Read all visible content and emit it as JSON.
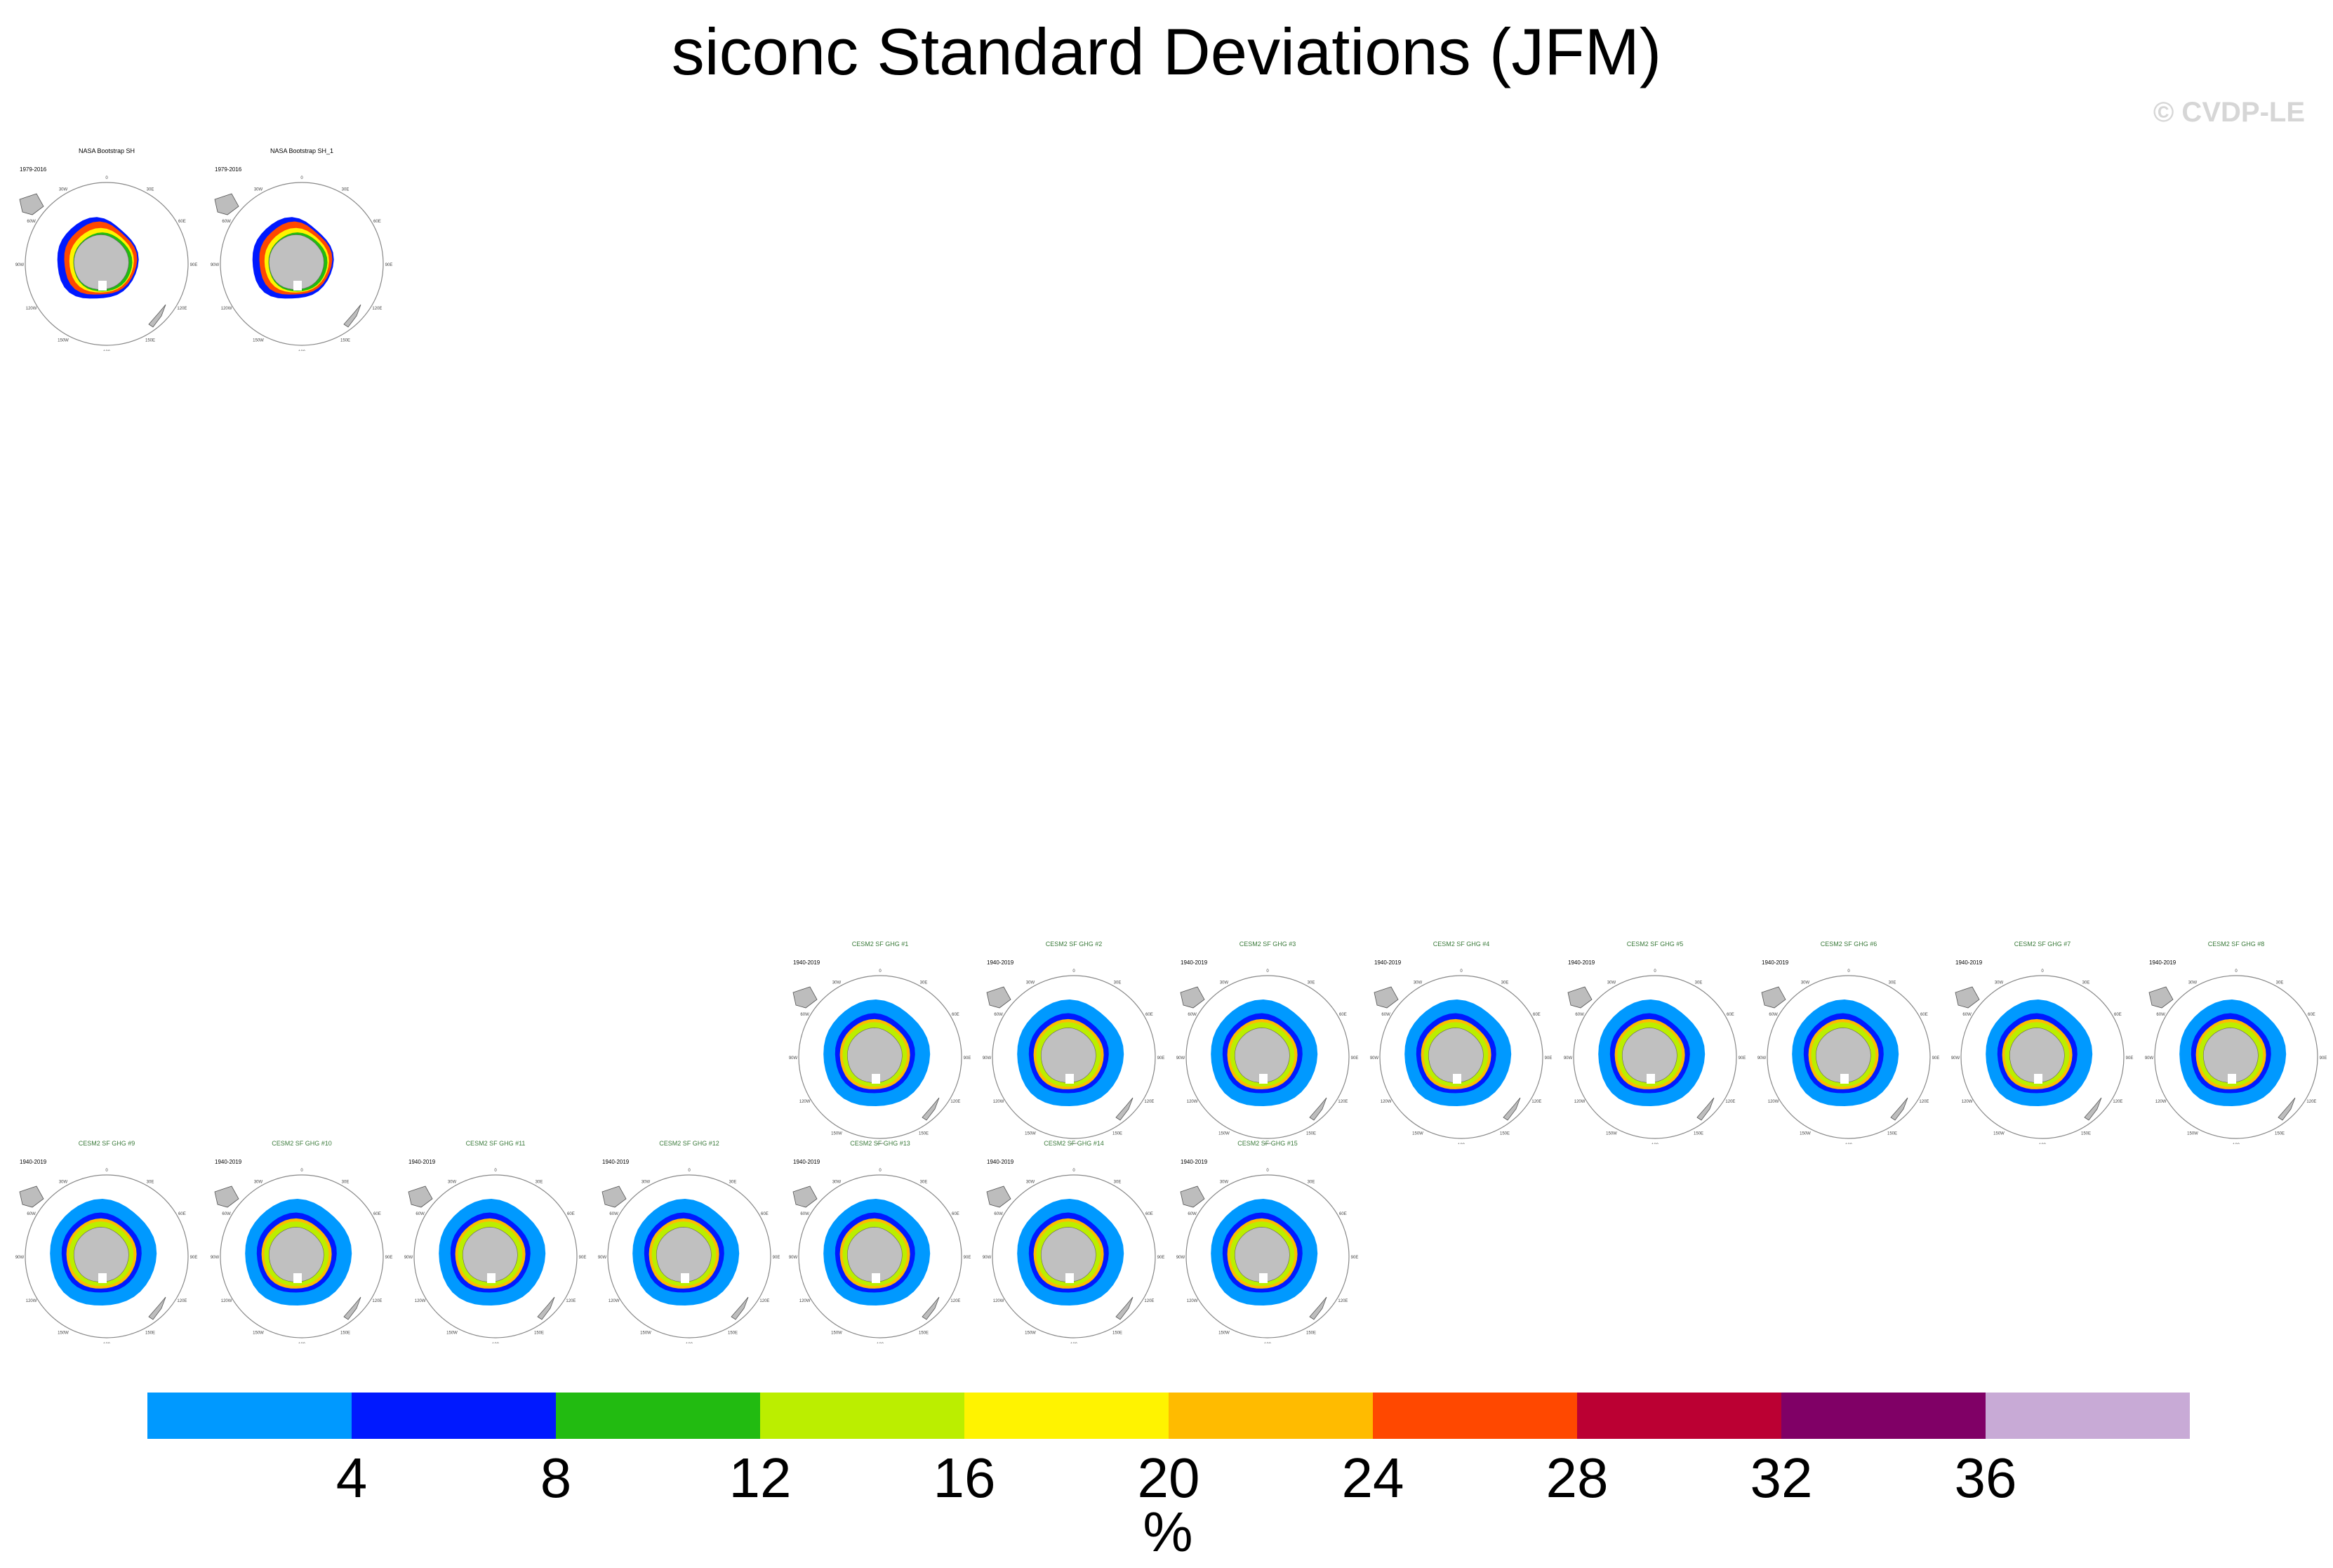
{
  "title": "siconc Standard Deviations (JFM)",
  "copyright": "© CVDP-LE",
  "colorbar": {
    "colors": [
      "#0099ff",
      "#0019ff",
      "#22bb11",
      "#bbee00",
      "#fff300",
      "#ffbb00",
      "#ff4800",
      "#bb0033",
      "#800066",
      "#c8aad6"
    ],
    "ticks": [
      "4",
      "8",
      "12",
      "16",
      "20",
      "24",
      "28",
      "32",
      "36"
    ],
    "units": "%"
  },
  "chart_data": [
    {
      "type": "heatmap",
      "title": "NASA Bootstrap SH",
      "period": "1979-2016",
      "projection": "south-polar-stereographic",
      "observation": true
    },
    {
      "type": "heatmap",
      "title": "NASA Bootstrap SH_1",
      "period": "1979-2016",
      "projection": "south-polar-stereographic",
      "observation": true
    },
    {
      "type": "heatmap",
      "title": "CESM2 SF GHG #1",
      "period": "1940-2019",
      "projection": "south-polar-stereographic"
    },
    {
      "type": "heatmap",
      "title": "CESM2 SF GHG #2",
      "period": "1940-2019",
      "projection": "south-polar-stereographic"
    },
    {
      "type": "heatmap",
      "title": "CESM2 SF GHG #3",
      "period": "1940-2019",
      "projection": "south-polar-stereographic"
    },
    {
      "type": "heatmap",
      "title": "CESM2 SF GHG #4",
      "period": "1940-2019",
      "projection": "south-polar-stereographic"
    },
    {
      "type": "heatmap",
      "title": "CESM2 SF GHG #5",
      "period": "1940-2019",
      "projection": "south-polar-stereographic"
    },
    {
      "type": "heatmap",
      "title": "CESM2 SF GHG #6",
      "period": "1940-2019",
      "projection": "south-polar-stereographic"
    },
    {
      "type": "heatmap",
      "title": "CESM2 SF GHG #7",
      "period": "1940-2019",
      "projection": "south-polar-stereographic"
    },
    {
      "type": "heatmap",
      "title": "CESM2 SF GHG #8",
      "period": "1940-2019",
      "projection": "south-polar-stereographic"
    },
    {
      "type": "heatmap",
      "title": "CESM2 SF GHG #9",
      "period": "1940-2019",
      "projection": "south-polar-stereographic"
    },
    {
      "type": "heatmap",
      "title": "CESM2 SF GHG #10",
      "period": "1940-2019",
      "projection": "south-polar-stereographic"
    },
    {
      "type": "heatmap",
      "title": "CESM2 SF GHG #11",
      "period": "1940-2019",
      "projection": "south-polar-stereographic"
    },
    {
      "type": "heatmap",
      "title": "CESM2 SF GHG #12",
      "period": "1940-2019",
      "projection": "south-polar-stereographic"
    },
    {
      "type": "heatmap",
      "title": "CESM2 SF GHG #13",
      "period": "1940-2019",
      "projection": "south-polar-stereographic"
    },
    {
      "type": "heatmap",
      "title": "CESM2 SF GHG #14",
      "period": "1940-2019",
      "projection": "south-polar-stereographic"
    },
    {
      "type": "heatmap",
      "title": "CESM2 SF GHG #15",
      "period": "1940-2019",
      "projection": "south-polar-stereographic"
    }
  ]
}
